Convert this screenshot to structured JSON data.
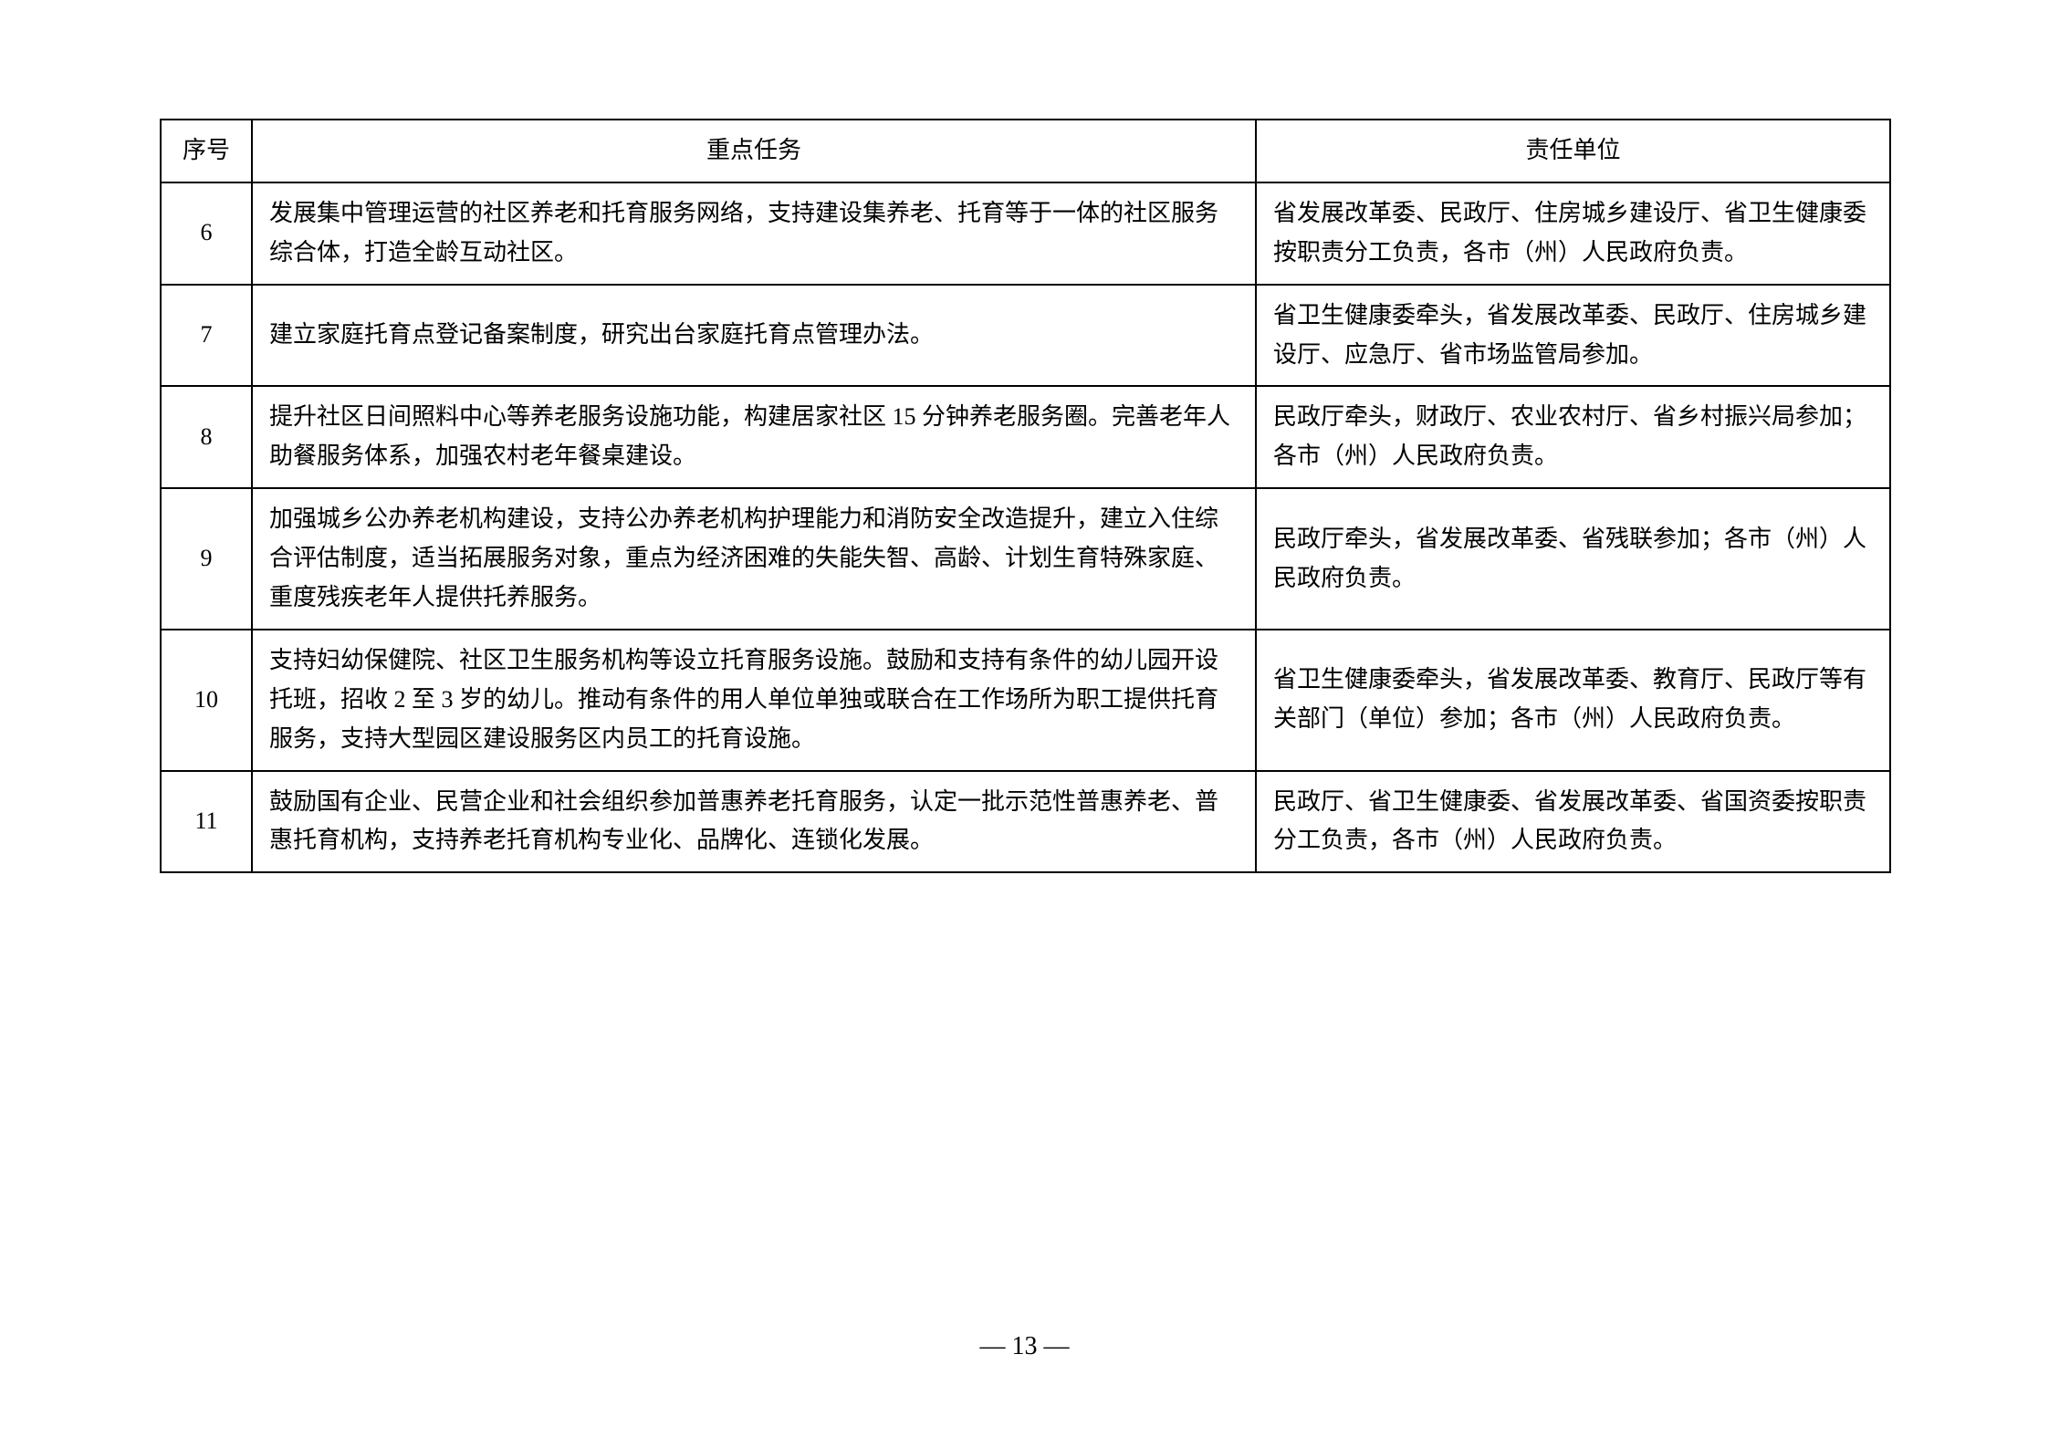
{
  "table": {
    "headers": {
      "num": "序号",
      "task": "重点任务",
      "unit": "责任单位"
    },
    "rows": [
      {
        "num": "6",
        "task": "发展集中管理运营的社区养老和托育服务网络，支持建设集养老、托育等于一体的社区服务综合体，打造全龄互动社区。",
        "unit": "省发展改革委、民政厅、住房城乡建设厅、省卫生健康委按职责分工负责，各市（州）人民政府负责。"
      },
      {
        "num": "7",
        "task": "建立家庭托育点登记备案制度，研究出台家庭托育点管理办法。",
        "unit": "省卫生健康委牵头，省发展改革委、民政厅、住房城乡建设厅、应急厅、省市场监管局参加。"
      },
      {
        "num": "8",
        "task": "提升社区日间照料中心等养老服务设施功能，构建居家社区 15 分钟养老服务圈。完善老年人助餐服务体系，加强农村老年餐桌建设。",
        "unit": "民政厅牵头，财政厅、农业农村厅、省乡村振兴局参加；各市（州）人民政府负责。"
      },
      {
        "num": "9",
        "task": "加强城乡公办养老机构建设，支持公办养老机构护理能力和消防安全改造提升，建立入住综合评估制度，适当拓展服务对象，重点为经济困难的失能失智、高龄、计划生育特殊家庭、重度残疾老年人提供托养服务。",
        "unit": "民政厅牵头，省发展改革委、省残联参加；各市（州）人民政府负责。"
      },
      {
        "num": "10",
        "task": "支持妇幼保健院、社区卫生服务机构等设立托育服务设施。鼓励和支持有条件的幼儿园开设托班，招收 2 至 3 岁的幼儿。推动有条件的用人单位单独或联合在工作场所为职工提供托育服务，支持大型园区建设服务区内员工的托育设施。",
        "unit": "省卫生健康委牵头，省发展改革委、教育厅、民政厅等有关部门（单位）参加；各市（州）人民政府负责。"
      },
      {
        "num": "11",
        "task": "鼓励国有企业、民营企业和社会组织参加普惠养老托育服务，认定一批示范性普惠养老、普惠托育机构，支持养老托育机构专业化、品牌化、连锁化发展。",
        "unit": "民政厅、省卫生健康委、省发展改革委、省国资委按职责分工负责，各市（州）人民政府负责。"
      }
    ]
  },
  "pageNumber": "— 13 —"
}
